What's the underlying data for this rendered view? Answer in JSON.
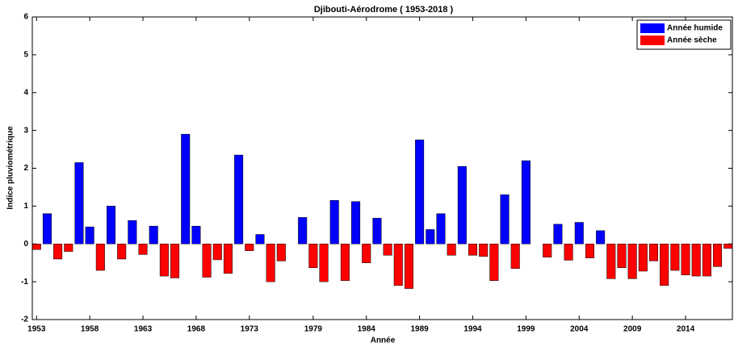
{
  "chart_data": {
    "type": "bar",
    "title": "Djibouti-Aérodrome ( 1953-2018 )",
    "xlabel": "Année",
    "ylabel": "Indice pluviométrique",
    "x": [
      1953,
      1954,
      1955,
      1956,
      1957,
      1958,
      1959,
      1960,
      1961,
      1962,
      1963,
      1964,
      1965,
      1966,
      1967,
      1968,
      1969,
      1970,
      1971,
      1972,
      1973,
      1974,
      1975,
      1976,
      1977,
      1978,
      1979,
      1980,
      1981,
      1982,
      1983,
      1984,
      1985,
      1986,
      1987,
      1988,
      1989,
      1990,
      1991,
      1992,
      1993,
      1994,
      1995,
      1996,
      1997,
      1998,
      1999,
      2000,
      2001,
      2002,
      2003,
      2004,
      2005,
      2006,
      2007,
      2008,
      2009,
      2010,
      2011,
      2012,
      2013,
      2014,
      2015,
      2016,
      2017,
      2018
    ],
    "series": [
      {
        "name": "Année humide",
        "color": "#0000ff",
        "values": [
          null,
          0.8,
          null,
          null,
          2.15,
          0.45,
          null,
          1.0,
          null,
          0.62,
          null,
          0.47,
          null,
          null,
          2.9,
          0.47,
          null,
          null,
          null,
          2.35,
          null,
          0.25,
          null,
          null,
          null,
          0.7,
          null,
          null,
          1.15,
          null,
          1.12,
          null,
          0.68,
          null,
          null,
          null,
          2.75,
          0.38,
          0.8,
          null,
          2.05,
          null,
          null,
          null,
          1.3,
          null,
          2.2,
          null,
          null,
          0.52,
          null,
          0.57,
          null,
          0.35,
          null,
          null,
          null,
          null,
          null,
          null,
          null,
          null,
          null,
          null,
          null,
          null
        ]
      },
      {
        "name": "Année sèche",
        "color": "#ff0000",
        "values": [
          -0.15,
          null,
          -0.4,
          -0.2,
          null,
          null,
          -0.7,
          null,
          -0.4,
          null,
          -0.28,
          null,
          -0.85,
          -0.9,
          null,
          null,
          -0.88,
          -0.42,
          -0.78,
          null,
          -0.18,
          null,
          -1.0,
          -0.45,
          null,
          null,
          -0.63,
          -1.0,
          null,
          -0.97,
          null,
          -0.5,
          null,
          -0.3,
          -1.1,
          -1.18,
          null,
          null,
          null,
          -0.3,
          null,
          -0.3,
          -0.33,
          -0.97,
          null,
          -0.65,
          null,
          null,
          -0.35,
          null,
          -0.43,
          null,
          -0.37,
          null,
          -0.92,
          -0.63,
          -0.92,
          -0.72,
          -0.45,
          -1.1,
          -0.7,
          -0.82,
          -0.85,
          -0.85,
          -0.6,
          -0.12
        ]
      }
    ],
    "xlim": [
      1952.6,
      2018.4
    ],
    "xticks": [
      1953,
      1958,
      1963,
      1968,
      1973,
      1979,
      1984,
      1989,
      1994,
      1999,
      2004,
      2009,
      2014
    ],
    "ylim": [
      -2,
      6
    ],
    "yticks": [
      -2,
      -1,
      0,
      1,
      2,
      3,
      4,
      5,
      6
    ],
    "grid": false,
    "legend": "upper right"
  }
}
